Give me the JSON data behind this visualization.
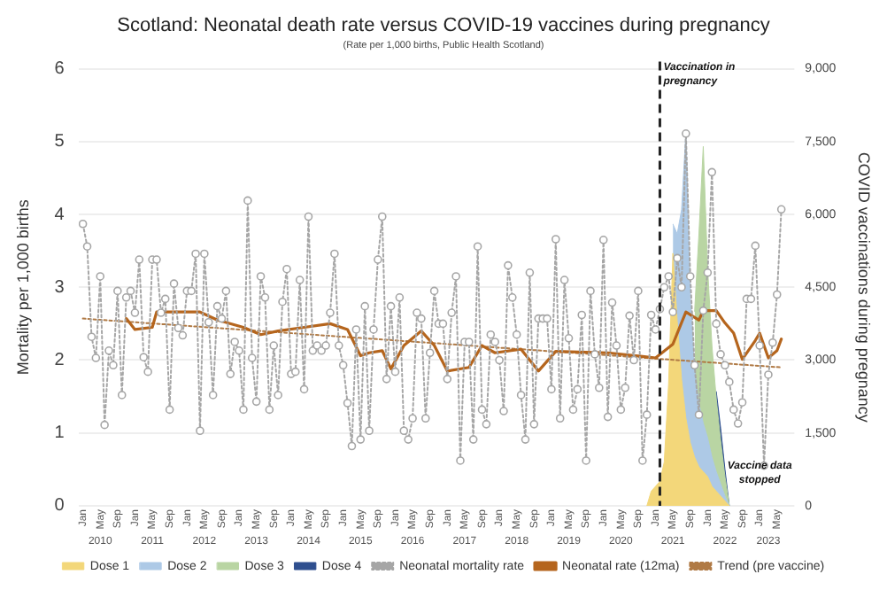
{
  "chart_data": {
    "type": "line",
    "title": "Scotland: Neonatal death rate versus COVID-19 vaccines during pregnancy",
    "subtitle": "(Rate per 1,000 births, Public Health Scotland)",
    "ylabel": "Mortality per 1,000 births",
    "y2label": "COVID vaccinations during pregnancy",
    "x": [
      "2010-01",
      "2010-02",
      "2010-03",
      "2010-04",
      "2010-05",
      "2010-06",
      "2010-07",
      "2010-08",
      "2010-09",
      "2010-10",
      "2010-11",
      "2010-12",
      "2011-01",
      "2011-02",
      "2011-03",
      "2011-04",
      "2011-05",
      "2011-06",
      "2011-07",
      "2011-08",
      "2011-09",
      "2011-10",
      "2011-11",
      "2011-12",
      "2012-01",
      "2012-02",
      "2012-03",
      "2012-04",
      "2012-05",
      "2012-06",
      "2012-07",
      "2012-08",
      "2012-09",
      "2012-10",
      "2012-11",
      "2012-12",
      "2013-01",
      "2013-02",
      "2013-03",
      "2013-04",
      "2013-05",
      "2013-06",
      "2013-07",
      "2013-08",
      "2013-09",
      "2013-10",
      "2013-11",
      "2013-12",
      "2014-01",
      "2014-02",
      "2014-03",
      "2014-04",
      "2014-05",
      "2014-06",
      "2014-07",
      "2014-08",
      "2014-09",
      "2014-10",
      "2014-11",
      "2014-12",
      "2015-01",
      "2015-02",
      "2015-03",
      "2015-04",
      "2015-05",
      "2015-06",
      "2015-07",
      "2015-08",
      "2015-09",
      "2015-10",
      "2015-11",
      "2015-12",
      "2016-01",
      "2016-02",
      "2016-03",
      "2016-04",
      "2016-05",
      "2016-06",
      "2016-07",
      "2016-08",
      "2016-09",
      "2016-10",
      "2016-11",
      "2016-12",
      "2017-01",
      "2017-02",
      "2017-03",
      "2017-04",
      "2017-05",
      "2017-06",
      "2017-07",
      "2017-08",
      "2017-09",
      "2017-10",
      "2017-11",
      "2017-12",
      "2018-01",
      "2018-02",
      "2018-03",
      "2018-04",
      "2018-05",
      "2018-06",
      "2018-07",
      "2018-08",
      "2018-09",
      "2018-10",
      "2018-11",
      "2018-12",
      "2019-01",
      "2019-02",
      "2019-03",
      "2019-04",
      "2019-05",
      "2019-06",
      "2019-07",
      "2019-08",
      "2019-09",
      "2019-10",
      "2019-11",
      "2019-12",
      "2020-01",
      "2020-02",
      "2020-03",
      "2020-04",
      "2020-05",
      "2020-06",
      "2020-07",
      "2020-08",
      "2020-09",
      "2020-10",
      "2020-11",
      "2020-12",
      "2021-01",
      "2021-02",
      "2021-03",
      "2021-04",
      "2021-05",
      "2021-06",
      "2021-07",
      "2021-08",
      "2021-09",
      "2021-10",
      "2021-11",
      "2021-12",
      "2022-01",
      "2022-02",
      "2022-03",
      "2022-04",
      "2022-05",
      "2022-06",
      "2022-07",
      "2022-08",
      "2022-09",
      "2022-10",
      "2022-11",
      "2022-12",
      "2023-01",
      "2023-02",
      "2023-03",
      "2023-04",
      "2023-05",
      "2023-06"
    ],
    "series": [
      {
        "name": "Dose 1",
        "type": "area",
        "axis": "y2",
        "color": "#f3d77a",
        "x": [
          "2020-11",
          "2020-12",
          "2021-01",
          "2021-02",
          "2021-03",
          "2021-04",
          "2021-05",
          "2021-06",
          "2021-07",
          "2021-08",
          "2021-09",
          "2021-10",
          "2021-11",
          "2021-12",
          "2022-01",
          "2022-02",
          "2022-03",
          "2022-04",
          "2022-05",
          "2022-06"
        ],
        "values": [
          0,
          300,
          400,
          500,
          900,
          2500,
          5200,
          3800,
          2600,
          1800,
          1300,
          1000,
          800,
          700,
          600,
          400,
          300,
          200,
          100,
          0
        ]
      },
      {
        "name": "Dose 2",
        "type": "area",
        "axis": "y2",
        "color": "#adc9e6",
        "x": [
          "2021-05",
          "2021-06",
          "2021-07",
          "2021-08",
          "2021-09",
          "2021-10",
          "2021-11",
          "2021-12",
          "2022-01",
          "2022-02",
          "2022-03",
          "2022-04",
          "2022-05",
          "2022-06"
        ],
        "values": [
          5800,
          5600,
          6100,
          7700,
          4300,
          2800,
          2100,
          1700,
          1400,
          1000,
          700,
          450,
          200,
          0
        ]
      },
      {
        "name": "Dose 3",
        "type": "area",
        "axis": "y2",
        "color": "#b9d5a3",
        "x": [
          "2021-10",
          "2021-11",
          "2021-12",
          "2022-01",
          "2022-02",
          "2022-03",
          "2022-04",
          "2022-05",
          "2022-06"
        ],
        "values": [
          4000,
          5600,
          7400,
          4900,
          3300,
          2200,
          1350,
          600,
          0
        ]
      },
      {
        "name": "Dose 4",
        "type": "area",
        "axis": "y2",
        "color": "#2f4f8f",
        "x": [
          "2022-03",
          "2022-04",
          "2022-05",
          "2022-06"
        ],
        "values": [
          2350,
          1600,
          750,
          0
        ]
      },
      {
        "name": "Neonatal mortality rate",
        "type": "line",
        "color": "#a6a6a6",
        "marker": "circle",
        "line_style": "dotted",
        "values": [
          3.87,
          3.56,
          2.32,
          2.03,
          3.15,
          1.11,
          2.13,
          1.93,
          2.95,
          1.52,
          2.86,
          2.95,
          2.65,
          3.38,
          2.04,
          1.84,
          3.38,
          3.38,
          2.65,
          2.84,
          1.32,
          3.05,
          2.44,
          2.34,
          2.95,
          2.95,
          3.46,
          1.03,
          3.46,
          2.52,
          1.52,
          2.74,
          2.57,
          2.95,
          1.81,
          2.25,
          2.13,
          1.32,
          4.19,
          2.03,
          1.43,
          3.15,
          2.86,
          1.32,
          2.2,
          1.52,
          2.8,
          3.25,
          1.81,
          1.84,
          3.1,
          1.6,
          3.97,
          2.13,
          2.2,
          2.13,
          2.2,
          2.65,
          3.46,
          2.2,
          1.93,
          1.41,
          0.82,
          2.42,
          0.91,
          2.74,
          1.03,
          2.42,
          3.38,
          3.97,
          1.74,
          2.74,
          1.84,
          2.86,
          1.03,
          0.91,
          1.2,
          2.65,
          2.57,
          1.2,
          2.1,
          2.95,
          2.5,
          2.5,
          1.74,
          2.65,
          3.15,
          0.62,
          2.25,
          2.25,
          0.91,
          3.56,
          1.32,
          1.12,
          2.35,
          2.25,
          2.0,
          1.3,
          3.3,
          2.86,
          2.35,
          1.52,
          0.91,
          3.2,
          1.12,
          2.57,
          2.57,
          2.57,
          1.6,
          3.66,
          1.2,
          3.1,
          2.3,
          1.32,
          1.6,
          2.62,
          0.62,
          2.95,
          2.08,
          1.62,
          3.65,
          1.22,
          2.79,
          2.2,
          1.32,
          1.62,
          2.61,
          2.0,
          2.95,
          0.62,
          1.25,
          2.62,
          2.42,
          2.7,
          3.0,
          3.15,
          2.66,
          3.4,
          3.0,
          5.11,
          3.15,
          1.93,
          1.25,
          2.68,
          3.2,
          4.58,
          2.5,
          2.08,
          1.93,
          1.7,
          1.32,
          1.13,
          1.42,
          2.84,
          2.84,
          3.57,
          2.2,
          0.55,
          1.8,
          2.24,
          2.9,
          4.07
        ]
      },
      {
        "name": "Neonatal rate (12ma)",
        "type": "line",
        "color": "#b5651d",
        "marker": "none",
        "line_style": "solid",
        "x": [
          "2010-11",
          "2011-01",
          "2011-05",
          "2011-06",
          "2012-04",
          "2012-08",
          "2013-02",
          "2013-06",
          "2013-10",
          "2014-04",
          "2014-10",
          "2015-02",
          "2015-05",
          "2015-07",
          "2015-10",
          "2015-12",
          "2016-03",
          "2016-07",
          "2016-10",
          "2017-01",
          "2017-06",
          "2017-09",
          "2017-12",
          "2018-06",
          "2018-10",
          "2019-02",
          "2020-02",
          "2020-10",
          "2021-01",
          "2021-05",
          "2021-08",
          "2021-11",
          "2021-12",
          "2022-03",
          "2022-05",
          "2022-07",
          "2022-09",
          "2022-12",
          "2023-01",
          "2023-03",
          "2023-05",
          "2023-06"
        ],
        "values": [
          2.57,
          2.42,
          2.45,
          2.66,
          2.66,
          2.55,
          2.45,
          2.35,
          2.4,
          2.45,
          2.5,
          2.42,
          2.06,
          2.1,
          2.13,
          1.88,
          2.2,
          2.4,
          2.2,
          1.85,
          1.9,
          2.2,
          2.1,
          2.15,
          1.85,
          2.12,
          2.1,
          2.05,
          2.03,
          2.22,
          2.66,
          2.55,
          2.68,
          2.68,
          2.51,
          2.37,
          2.01,
          2.27,
          2.37,
          2.03,
          2.13,
          2.29
        ]
      },
      {
        "name": "Trend (pre vaccine)",
        "type": "line",
        "color": "#b07a45",
        "marker": "none",
        "line_style": "dotted",
        "x": [
          "2010-01",
          "2023-06"
        ],
        "values": [
          2.57,
          1.9
        ]
      }
    ],
    "xlim": [
      "2009-12",
      "2023-09"
    ],
    "xticks": [
      {
        "value": "2010-01",
        "label": "Jan"
      },
      {
        "value": "2010-05",
        "label": "May"
      },
      {
        "value": "2010-09",
        "label": "Sep"
      },
      {
        "value": "2011-01",
        "label": "Jan"
      },
      {
        "value": "2011-05",
        "label": "May"
      },
      {
        "value": "2011-09",
        "label": "Sep"
      },
      {
        "value": "2012-01",
        "label": "Jan"
      },
      {
        "value": "2012-05",
        "label": "May"
      },
      {
        "value": "2012-09",
        "label": "Sep"
      },
      {
        "value": "2013-01",
        "label": "Jan"
      },
      {
        "value": "2013-05",
        "label": "May"
      },
      {
        "value": "2013-09",
        "label": "Sep"
      },
      {
        "value": "2014-01",
        "label": "Jan"
      },
      {
        "value": "2014-05",
        "label": "May"
      },
      {
        "value": "2014-09",
        "label": "Sep"
      },
      {
        "value": "2015-01",
        "label": "Jan"
      },
      {
        "value": "2015-05",
        "label": "May"
      },
      {
        "value": "2015-09",
        "label": "Sep"
      },
      {
        "value": "2016-01",
        "label": "Jan"
      },
      {
        "value": "2016-05",
        "label": "May"
      },
      {
        "value": "2016-09",
        "label": "Sep"
      },
      {
        "value": "2017-01",
        "label": "Jan"
      },
      {
        "value": "2017-05",
        "label": "May"
      },
      {
        "value": "2017-09",
        "label": "Sep"
      },
      {
        "value": "2018-01",
        "label": "Jan"
      },
      {
        "value": "2018-05",
        "label": "May"
      },
      {
        "value": "2018-09",
        "label": "Sep"
      },
      {
        "value": "2019-01",
        "label": "Jan"
      },
      {
        "value": "2019-05",
        "label": "May"
      },
      {
        "value": "2019-09",
        "label": "Sep"
      },
      {
        "value": "2020-01",
        "label": "Jan"
      },
      {
        "value": "2020-05",
        "label": "May"
      },
      {
        "value": "2020-09",
        "label": "Sep"
      },
      {
        "value": "2021-01",
        "label": "Jan"
      },
      {
        "value": "2021-05",
        "label": "May"
      },
      {
        "value": "2021-09",
        "label": "Sep"
      },
      {
        "value": "2022-01",
        "label": "Jan"
      },
      {
        "value": "2022-05",
        "label": "May"
      },
      {
        "value": "2022-09",
        "label": "Sep"
      },
      {
        "value": "2023-01",
        "label": "Jan"
      },
      {
        "value": "2023-05",
        "label": "May"
      }
    ],
    "x2lim": [
      "2009-12",
      "2023-09"
    ],
    "x2ticks": [
      {
        "value": "2010-05",
        "label": "2010"
      },
      {
        "value": "2011-05",
        "label": "2011"
      },
      {
        "value": "2012-05",
        "label": "2012"
      },
      {
        "value": "2013-05",
        "label": "2013"
      },
      {
        "value": "2014-05",
        "label": "2014"
      },
      {
        "value": "2015-05",
        "label": "2015"
      },
      {
        "value": "2016-05",
        "label": "2016"
      },
      {
        "value": "2017-05",
        "label": "2017"
      },
      {
        "value": "2018-05",
        "label": "2018"
      },
      {
        "value": "2019-05",
        "label": "2019"
      },
      {
        "value": "2020-05",
        "label": "2020"
      },
      {
        "value": "2021-05",
        "label": "2021"
      },
      {
        "value": "2022-05",
        "label": "2022"
      },
      {
        "value": "2023-03",
        "label": "2023"
      }
    ],
    "ylim": [
      0,
      6
    ],
    "yticks": [
      0,
      1,
      2,
      3,
      4,
      5,
      6
    ],
    "y2lim": [
      0,
      9000
    ],
    "y2ticks": [
      0,
      {
        "value": 1500,
        "label": "1,500"
      },
      {
        "value": 3000,
        "label": "3,000"
      },
      {
        "value": 4500,
        "label": "4,500"
      },
      {
        "value": 6000,
        "label": "6,000"
      },
      {
        "value": 7500,
        "label": "7,500"
      },
      {
        "value": 9000,
        "label": "9,000"
      }
    ],
    "ref_lines": [
      {
        "axis": "x",
        "value": "2021-02",
        "label": "Vaccination in pregnancy",
        "color": "#222222",
        "line_style": "dashed"
      }
    ],
    "annotations": [
      {
        "text": "Vaccine data stopped",
        "x": "2023-01",
        "y": 0.45
      }
    ],
    "grid": "y",
    "legend": "bottom"
  }
}
